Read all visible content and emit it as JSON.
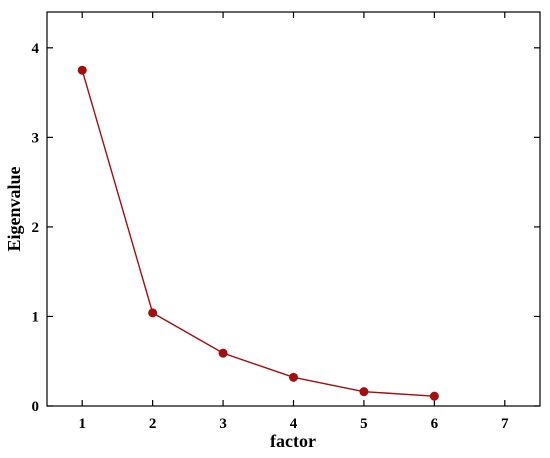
{
  "chart_data": {
    "type": "line",
    "title": "",
    "xlabel": "factor",
    "ylabel": "Eigenvalue",
    "x_ticks": [
      1,
      2,
      3,
      4,
      5,
      6,
      7
    ],
    "y_ticks": [
      0,
      1,
      2,
      3,
      4
    ],
    "xlim": [
      0.5,
      7.5
    ],
    "ylim": [
      0,
      4.4
    ],
    "grid": false,
    "legend": "none",
    "series": [
      {
        "x": [
          1,
          2,
          3,
          4,
          5,
          6
        ],
        "y": [
          3.75,
          1.04,
          0.59,
          0.32,
          0.16,
          0.11
        ],
        "color": "#a30f0f"
      }
    ]
  }
}
